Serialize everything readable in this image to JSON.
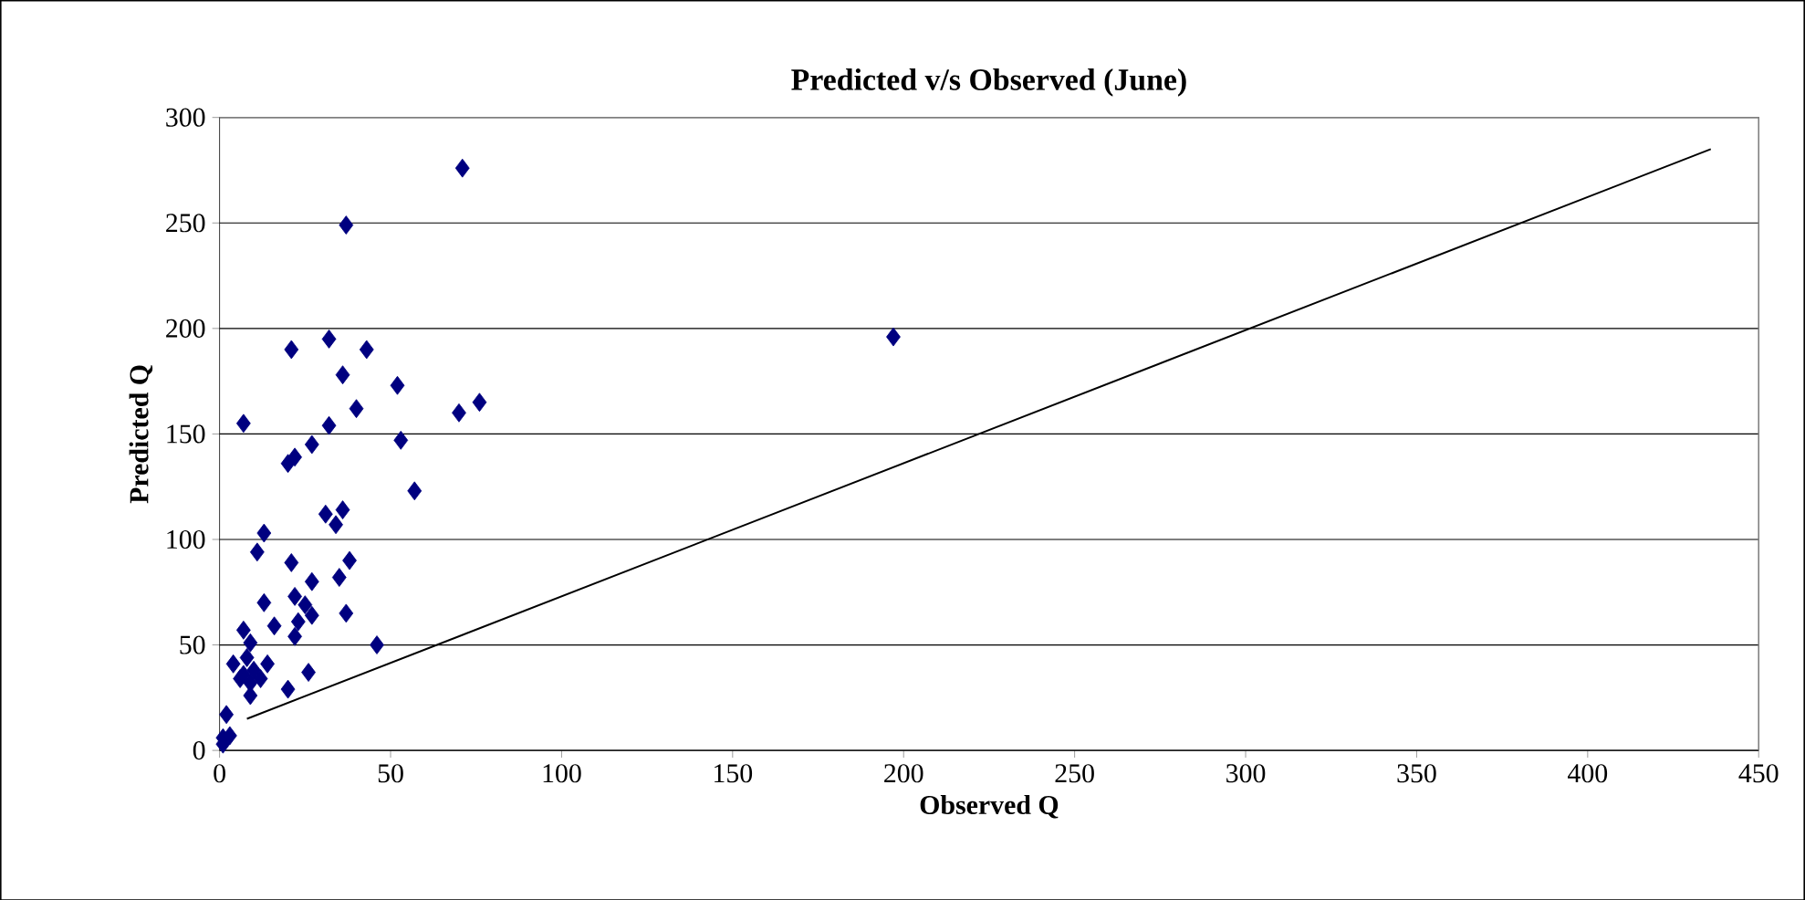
{
  "chart_data": {
    "type": "scatter",
    "title": "Predicted v/s Observed (June)",
    "xlabel": "Observed Q",
    "ylabel": "Predicted Q",
    "xlim": [
      0,
      450
    ],
    "xticks": [
      0,
      50,
      100,
      150,
      200,
      250,
      300,
      350,
      400,
      450
    ],
    "ylim": [
      0,
      300
    ],
    "yticks": [
      0,
      50,
      100,
      150,
      200,
      250,
      300
    ],
    "grid": "y",
    "series": [
      {
        "color": "#000080",
        "marker": "diamond",
        "x": [
          71,
          37,
          197,
          21,
          32,
          43,
          36,
          52,
          7,
          32,
          40,
          70,
          76,
          27,
          53,
          20,
          22,
          57,
          31,
          36,
          34,
          13,
          11,
          38,
          21,
          35,
          27,
          22,
          13,
          25,
          37,
          27,
          23,
          16,
          7,
          22,
          46,
          9,
          4,
          8,
          14,
          10,
          6,
          26,
          9,
          20,
          9,
          2,
          1,
          3,
          1,
          12,
          7
        ],
        "values": [
          276,
          249,
          196,
          190,
          195,
          190,
          178,
          173,
          155,
          154,
          162,
          160,
          165,
          145,
          147,
          136,
          139,
          123,
          112,
          114,
          107,
          103,
          94,
          90,
          89,
          82,
          80,
          73,
          70,
          69,
          65,
          64,
          61,
          59,
          57,
          54,
          50,
          51,
          41,
          44,
          41,
          38,
          34,
          37,
          32,
          29,
          26,
          17,
          6,
          7,
          3,
          34,
          36
        ]
      },
      {
        "type": "line",
        "color": "#000000",
        "marker": "none",
        "line_style": "solid",
        "x": [
          8,
          436
        ],
        "values": [
          15,
          285
        ]
      }
    ]
  }
}
